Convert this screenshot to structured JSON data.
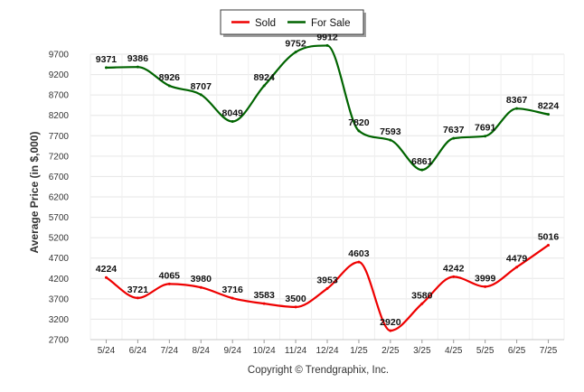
{
  "chart_data": {
    "type": "line",
    "ylabel": "Average Price (in $,000)",
    "footer": "Copyright © Trendgraphix, Inc.",
    "categories": [
      "5/24",
      "6/24",
      "7/24",
      "8/24",
      "9/24",
      "10/24",
      "11/24",
      "12/24",
      "1/25",
      "2/25",
      "3/25",
      "4/25",
      "5/25",
      "6/25",
      "7/25"
    ],
    "ylim": [
      2700,
      9700
    ],
    "yticks": [
      2700,
      3200,
      3700,
      4200,
      4700,
      5200,
      5700,
      6200,
      6700,
      7200,
      7700,
      8200,
      8700,
      9200,
      9700
    ],
    "grid": true,
    "smooth": true,
    "legend": "top-center",
    "series": [
      {
        "name": "Sold",
        "color": "#ee0000",
        "values": [
          4224,
          3721,
          4065,
          3980,
          3716,
          3583,
          3500,
          3953,
          4603,
          2920,
          3580,
          4242,
          3999,
          4479,
          5016
        ]
      },
      {
        "name": "For Sale",
        "color": "#006400",
        "values": [
          9371,
          9386,
          8926,
          8707,
          8049,
          8924,
          9752,
          9912,
          7820,
          7593,
          6861,
          7637,
          7691,
          8367,
          8224
        ]
      }
    ]
  }
}
